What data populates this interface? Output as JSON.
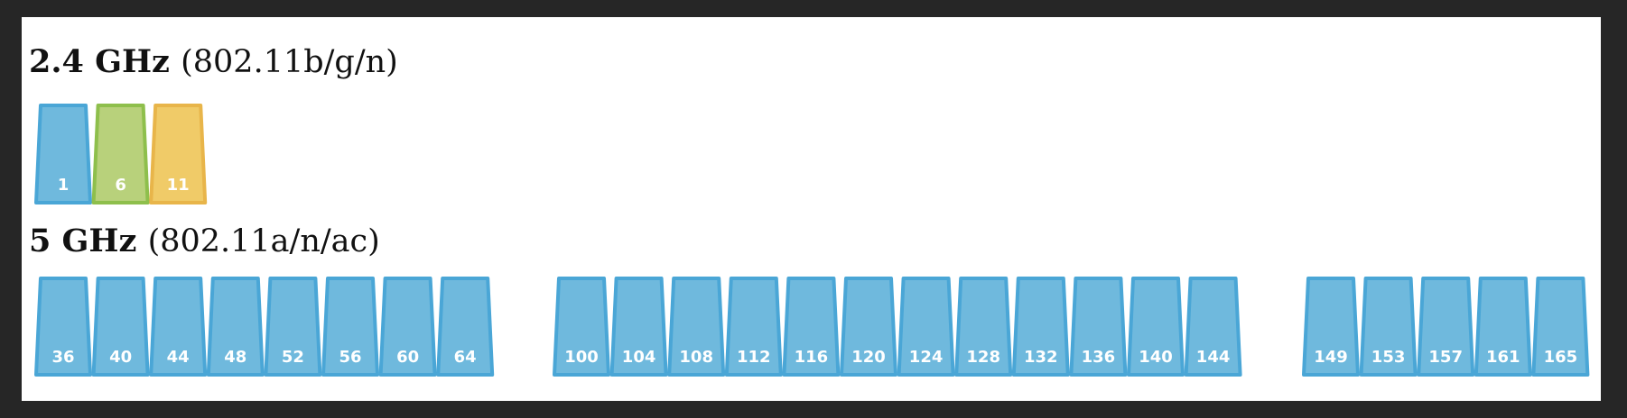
{
  "bands": [
    {
      "frequency": "2.4 GHz",
      "standard": "(802.11b/g/n)",
      "channels": [
        {
          "label": "1",
          "group": 0,
          "fill": "#6fb9dd",
          "stroke": "#4aa6d6"
        },
        {
          "label": "6",
          "group": 0,
          "fill": "#b8d17b",
          "stroke": "#8ebf4c"
        },
        {
          "label": "11",
          "group": 0,
          "fill": "#f0cb68",
          "stroke": "#e8b54a"
        }
      ]
    },
    {
      "frequency": "5 GHz",
      "standard": "(802.11a/n/ac)",
      "channels": [
        {
          "label": "36",
          "group": 0,
          "fill": "#6fb9dd",
          "stroke": "#4aa6d6"
        },
        {
          "label": "40",
          "group": 0,
          "fill": "#6fb9dd",
          "stroke": "#4aa6d6"
        },
        {
          "label": "44",
          "group": 0,
          "fill": "#6fb9dd",
          "stroke": "#4aa6d6"
        },
        {
          "label": "48",
          "group": 0,
          "fill": "#6fb9dd",
          "stroke": "#4aa6d6"
        },
        {
          "label": "52",
          "group": 0,
          "fill": "#6fb9dd",
          "stroke": "#4aa6d6"
        },
        {
          "label": "56",
          "group": 0,
          "fill": "#6fb9dd",
          "stroke": "#4aa6d6"
        },
        {
          "label": "60",
          "group": 0,
          "fill": "#6fb9dd",
          "stroke": "#4aa6d6"
        },
        {
          "label": "64",
          "group": 0,
          "fill": "#6fb9dd",
          "stroke": "#4aa6d6"
        },
        {
          "label": "100",
          "group": 1,
          "fill": "#6fb9dd",
          "stroke": "#4aa6d6"
        },
        {
          "label": "104",
          "group": 1,
          "fill": "#6fb9dd",
          "stroke": "#4aa6d6"
        },
        {
          "label": "108",
          "group": 1,
          "fill": "#6fb9dd",
          "stroke": "#4aa6d6"
        },
        {
          "label": "112",
          "group": 1,
          "fill": "#6fb9dd",
          "stroke": "#4aa6d6"
        },
        {
          "label": "116",
          "group": 1,
          "fill": "#6fb9dd",
          "stroke": "#4aa6d6"
        },
        {
          "label": "120",
          "group": 1,
          "fill": "#6fb9dd",
          "stroke": "#4aa6d6"
        },
        {
          "label": "124",
          "group": 1,
          "fill": "#6fb9dd",
          "stroke": "#4aa6d6"
        },
        {
          "label": "128",
          "group": 1,
          "fill": "#6fb9dd",
          "stroke": "#4aa6d6"
        },
        {
          "label": "132",
          "group": 1,
          "fill": "#6fb9dd",
          "stroke": "#4aa6d6"
        },
        {
          "label": "136",
          "group": 1,
          "fill": "#6fb9dd",
          "stroke": "#4aa6d6"
        },
        {
          "label": "140",
          "group": 1,
          "fill": "#6fb9dd",
          "stroke": "#4aa6d6"
        },
        {
          "label": "144",
          "group": 1,
          "fill": "#6fb9dd",
          "stroke": "#4aa6d6"
        },
        {
          "label": "149",
          "group": 2,
          "fill": "#6fb9dd",
          "stroke": "#4aa6d6"
        },
        {
          "label": "153",
          "group": 2,
          "fill": "#6fb9dd",
          "stroke": "#4aa6d6"
        },
        {
          "label": "157",
          "group": 2,
          "fill": "#6fb9dd",
          "stroke": "#4aa6d6"
        },
        {
          "label": "161",
          "group": 2,
          "fill": "#6fb9dd",
          "stroke": "#4aa6d6"
        },
        {
          "label": "165",
          "group": 2,
          "fill": "#6fb9dd",
          "stroke": "#4aa6d6"
        }
      ]
    }
  ]
}
